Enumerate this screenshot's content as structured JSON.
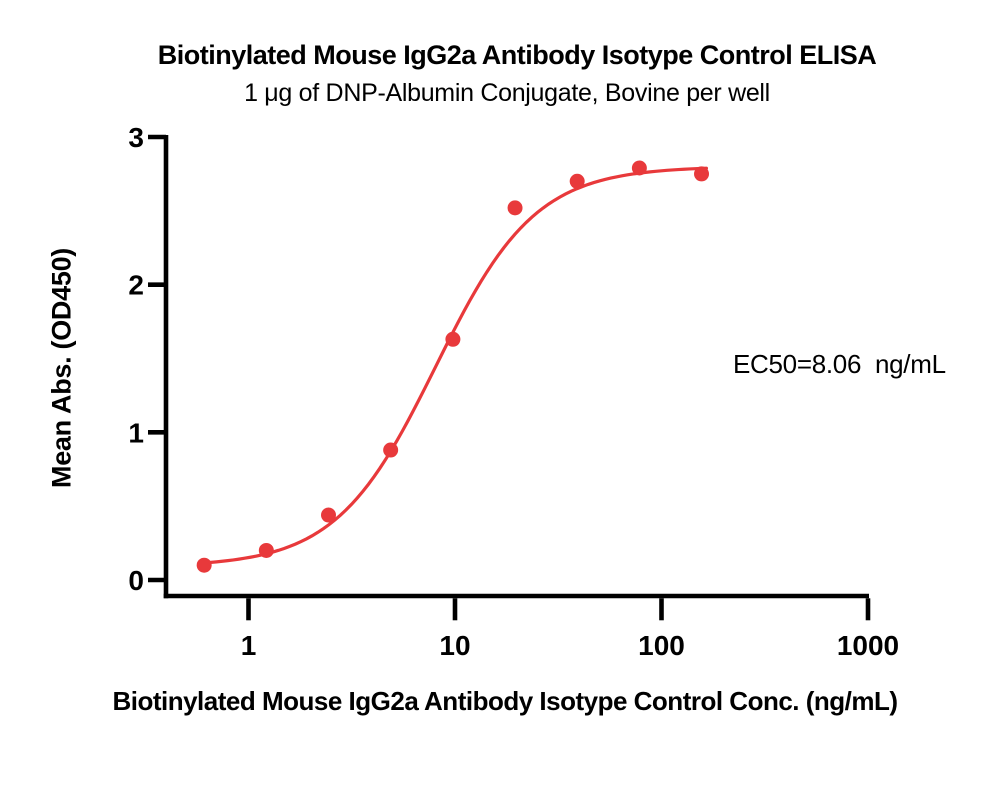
{
  "chart": {
    "title": "Biotinylated Mouse IgG2a Antibody Isotype Control ELISA",
    "subtitle": "1 μg of DNP-Albumin Conjugate, Bovine per well",
    "xlabel": "Biotinylated Mouse IgG2a Antibody Isotype Control Conc. (ng/mL)",
    "ylabel": "Mean Abs. (OD450)",
    "annotation": "EC50=8.06  ng/mL"
  },
  "chart_data": {
    "type": "scatter",
    "title": "Biotinylated Mouse IgG2a Antibody Isotype Control ELISA",
    "subtitle": "1 μg of DNP-Albumin Conjugate, Bovine per well",
    "xlabel": "Biotinylated Mouse IgG2a Antibody Isotype Control Conc. (ng/mL)",
    "ylabel": "Mean Abs. (OD450)",
    "annotation": "EC50=8.06  ng/mL",
    "x_scale": "log10",
    "x": [
      0.61,
      1.22,
      2.44,
      4.88,
      9.77,
      19.53,
      39.06,
      78.13,
      156.25
    ],
    "y": [
      0.1,
      0.2,
      0.44,
      0.88,
      1.63,
      2.52,
      2.7,
      2.79,
      2.75
    ],
    "x_ticks": [
      1,
      10,
      100,
      1000
    ],
    "y_ticks": [
      0,
      1,
      2,
      3
    ],
    "ylim": [
      0,
      3
    ],
    "xlim": [
      0.4,
      1100
    ],
    "grid": false,
    "legend": null,
    "fit_curve": {
      "model": "4PL",
      "bottom": 0.09,
      "top": 2.8,
      "ec50": 8.06,
      "hill": 1.8,
      "x_start": 0.58,
      "x_end": 165
    },
    "colors": {
      "series": "#E8393B",
      "axis": "#000000",
      "text": "#000000",
      "background": "#FFFFFF"
    }
  }
}
